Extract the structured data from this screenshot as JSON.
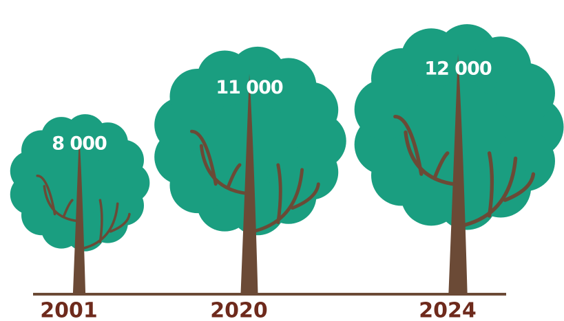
{
  "chart_data": {
    "type": "pictorial",
    "categories": [
      "2001",
      "2020",
      "2024"
    ],
    "values": [
      8000,
      11000,
      12000
    ],
    "value_labels": [
      "8 000",
      "11 000",
      "12 000"
    ],
    "color": "#1a9e80"
  }
}
